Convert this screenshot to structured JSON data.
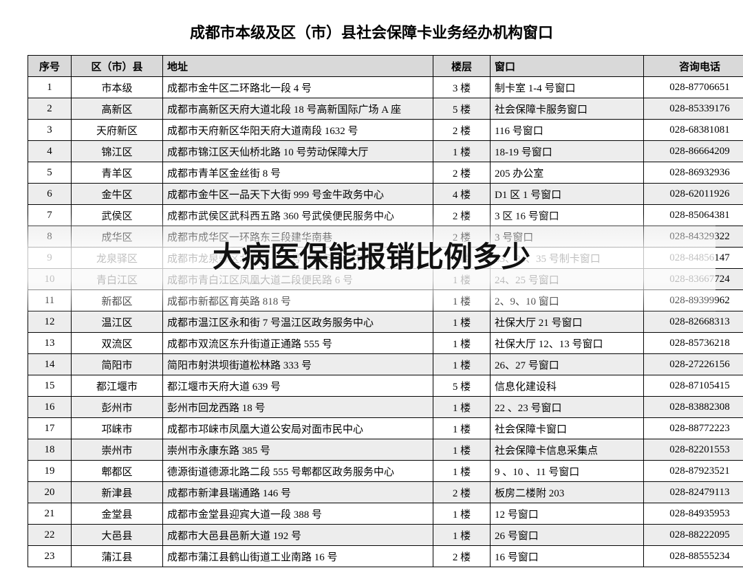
{
  "title": "成都市本级及区（市）县社会保障卡业务经办机构窗口",
  "overlay_text": "大病医保能报销比例多少",
  "columns": {
    "seq": "序号",
    "district": "区（市）县",
    "address": "地址",
    "floor": "楼层",
    "window": "窗口",
    "phone": "咨询电话"
  },
  "rows": [
    {
      "seq": "1",
      "district": "市本级",
      "address": "成都市金牛区二环路北一段 4 号",
      "floor": "3 楼",
      "window": "制卡室 1-4 号窗口",
      "phone": "028-87706651"
    },
    {
      "seq": "2",
      "district": "高新区",
      "address": "成都市高新区天府大道北段 18 号高新国际广场 A 座",
      "floor": "5 楼",
      "window": "社会保障卡服务窗口",
      "phone": "028-85339176"
    },
    {
      "seq": "3",
      "district": "天府新区",
      "address": "成都市天府新区华阳天府大道南段 1632 号",
      "floor": "2 楼",
      "window": "116 号窗口",
      "phone": "028-68381081"
    },
    {
      "seq": "4",
      "district": "锦江区",
      "address": "成都市锦江区天仙桥北路 10 号劳动保障大厅",
      "floor": "1 楼",
      "window": "18-19 号窗口",
      "phone": "028-86664209"
    },
    {
      "seq": "5",
      "district": "青羊区",
      "address": "成都市青羊区金丝街 8 号",
      "floor": "2 楼",
      "window": "205 办公室",
      "phone": "028-86932936"
    },
    {
      "seq": "6",
      "district": "金牛区",
      "address": "成都市金牛区一品天下大街 999 号金牛政务中心",
      "floor": "4 楼",
      "window": "D1 区 1 号窗口",
      "phone": "028-62011926"
    },
    {
      "seq": "7",
      "district": "武侯区",
      "address": "成都市武侯区武科西五路 360 号武侯便民服务中心",
      "floor": "2 楼",
      "window": "3 区 16 号窗口",
      "phone": "028-85064381"
    },
    {
      "seq": "8",
      "district": "成华区",
      "address": "成都市成华区一环路东三段建华南巷",
      "floor": "2 楼",
      "window": "3 号窗口",
      "phone": "028-84329322"
    },
    {
      "seq": "9",
      "district": "龙泉驿区",
      "address": "成都市龙泉驿区北泉路 777 号（政务服务中心）",
      "floor": "1 楼",
      "window": "33、34、35 号制卡窗口",
      "phone": "028-84856147"
    },
    {
      "seq": "10",
      "district": "青白江区",
      "address": "成都市青白江区凤凰大道二段便民路 6 号",
      "floor": "1 楼",
      "window": "24、25 号窗口",
      "phone": "028-83667724"
    },
    {
      "seq": "11",
      "district": "新都区",
      "address": "成都市新都区育英路 818 号",
      "floor": "1 楼",
      "window": "2、9、10 窗口",
      "phone": "028-89399962"
    },
    {
      "seq": "12",
      "district": "温江区",
      "address": "成都市温江区永和街 7 号温江区政务服务中心",
      "floor": "1 楼",
      "window": "社保大厅 21 号窗口",
      "phone": "028-82668313"
    },
    {
      "seq": "13",
      "district": "双流区",
      "address": "成都市双流区东升街道正通路 555 号",
      "floor": "1 楼",
      "window": "社保大厅 12、13 号窗口",
      "phone": "028-85736218"
    },
    {
      "seq": "14",
      "district": "简阳市",
      "address": "简阳市射洪坝街道松林路 333 号",
      "floor": "1 楼",
      "window": "26、27 号窗口",
      "phone": "028-27226156"
    },
    {
      "seq": "15",
      "district": "都江堰市",
      "address": "都江堰市天府大道 639 号",
      "floor": "5 楼",
      "window": "信息化建设科",
      "phone": "028-87105415"
    },
    {
      "seq": "16",
      "district": "彭州市",
      "address": "彭州市回龙西路 18 号",
      "floor": "1 楼",
      "window": "22 、23 号窗口",
      "phone": "028-83882308"
    },
    {
      "seq": "17",
      "district": "邛崃市",
      "address": "成都市邛崃市凤凰大道公安局对面市民中心",
      "floor": "1 楼",
      "window": "社会保障卡窗口",
      "phone": "028-88772223"
    },
    {
      "seq": "18",
      "district": "崇州市",
      "address": "崇州市永康东路 385 号",
      "floor": "1 楼",
      "window": "社会保障卡信息采集点",
      "phone": "028-82201553"
    },
    {
      "seq": "19",
      "district": "郫都区",
      "address": "德源街道德源北路二段 555 号郫都区政务服务中心",
      "floor": "1 楼",
      "window": "9 、10 、11 号窗口",
      "phone": "028-87923521"
    },
    {
      "seq": "20",
      "district": "新津县",
      "address": "成都市新津县瑞通路 146 号",
      "floor": "2 楼",
      "window": "板房二楼附 203",
      "phone": "028-82479113"
    },
    {
      "seq": "21",
      "district": "金堂县",
      "address": "成都市金堂县迎宾大道一段 388 号",
      "floor": "1 楼",
      "window": "12 号窗口",
      "phone": "028-84935953"
    },
    {
      "seq": "22",
      "district": "大邑县",
      "address": "成都市大邑县邑新大道 192 号",
      "floor": "1 楼",
      "window": "26 号窗口",
      "phone": "028-88222095"
    },
    {
      "seq": "23",
      "district": "蒲江县",
      "address": "成都市蒲江县鹤山街道工业南路 16 号",
      "floor": "2 楼",
      "window": "16 号窗口",
      "phone": "028-88555234"
    }
  ]
}
